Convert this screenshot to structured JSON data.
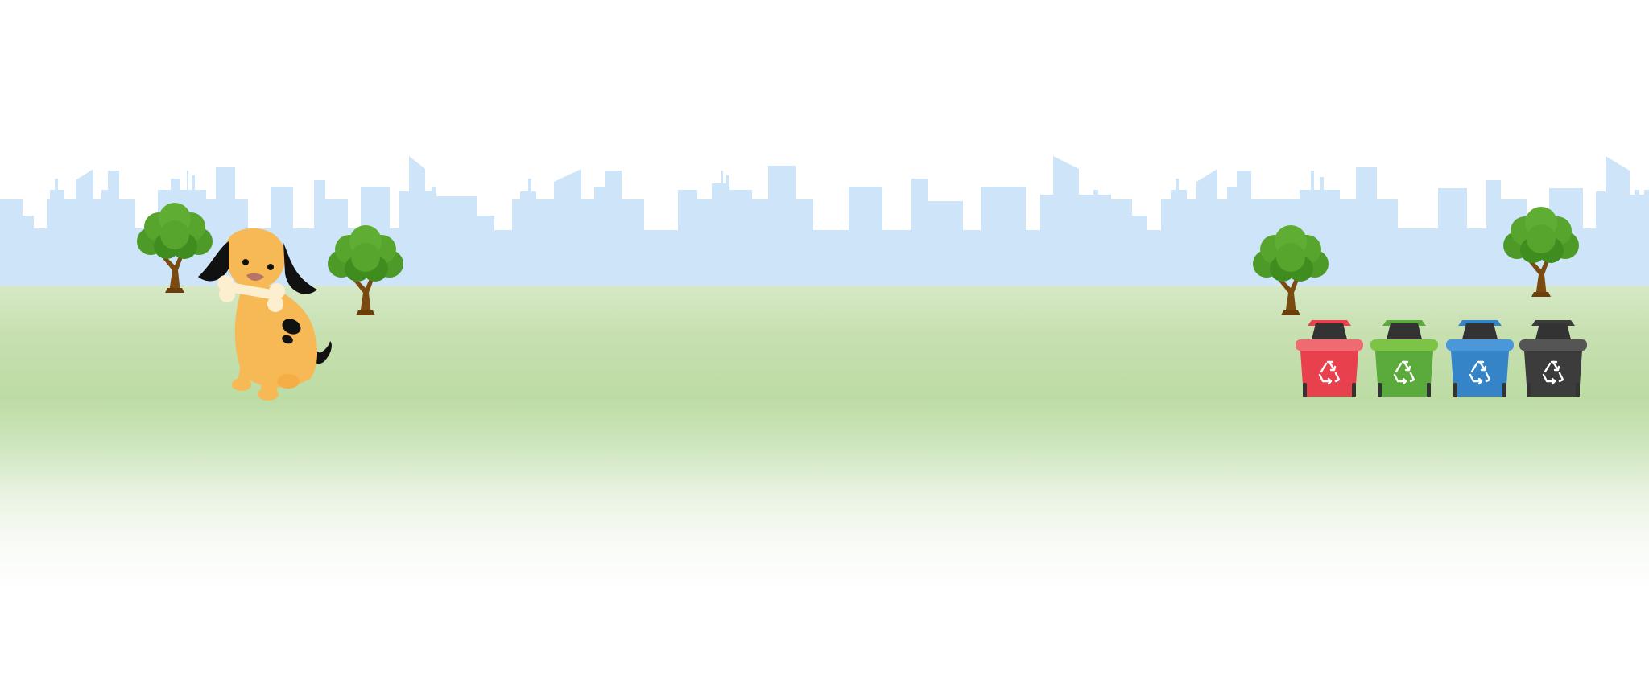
{
  "scene": {
    "type": "recycling-sorting-game",
    "colors": {
      "sky": "#ffffff",
      "skyline": "#cde4f9",
      "grass_top": "#d6e8c6",
      "grass_mid": "#bddca4",
      "tree_leaves": "#57a52d",
      "tree_leaves_dark": "#3f8c1f",
      "tree_trunk": "#7a4a10",
      "dog_body": "#f7b955",
      "dog_ears": "#111111",
      "bone": "#fbefcf"
    },
    "characters": [
      {
        "name": "dog",
        "holding": "bone"
      }
    ],
    "trees": 4,
    "bins": [
      {
        "name": "red-recycling-bin",
        "color": "#e8404d",
        "lid": "#f06a72",
        "icon": "recycle-icon"
      },
      {
        "name": "green-recycling-bin",
        "color": "#5aab3b",
        "lid": "#7cc446",
        "icon": "recycle-icon"
      },
      {
        "name": "blue-recycling-bin",
        "color": "#3584c8",
        "lid": "#4a98d9",
        "icon": "recycle-icon"
      },
      {
        "name": "gray-recycling-bin",
        "color": "#3c3c3c",
        "lid": "#555555",
        "icon": "recycle-icon"
      }
    ]
  }
}
